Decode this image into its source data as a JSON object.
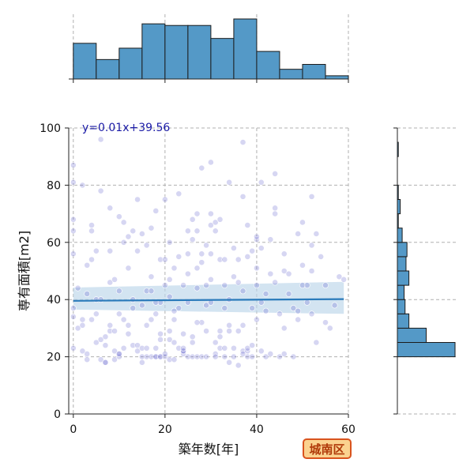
{
  "chart_data": {
    "type": "scatter",
    "xlabel": "築年数[年]",
    "ylabel": "専有面積[m2]",
    "xlim": [
      -1,
      60
    ],
    "ylim": [
      0,
      100
    ],
    "x_ticks": [
      0,
      20,
      40,
      60
    ],
    "y_ticks": [
      0,
      20,
      40,
      60,
      80,
      100
    ],
    "grid": true,
    "annotation": "y=0.01x+39.56",
    "badge": "城南区",
    "regression": {
      "slope": 0.01,
      "intercept": 39.56,
      "ci_left": [
        36.5,
        44.2
      ],
      "ci_right": [
        35.0,
        46.2
      ]
    },
    "colors": {
      "point": "#6a6acf",
      "bar": "#5499c7",
      "line": "#2b7bbb",
      "band": "#bcd6ea",
      "badge_bg": "#fbd28f",
      "badge_border": "#d9531e"
    },
    "top_histogram": {
      "bin_edges": [
        0,
        5,
        10,
        15,
        20,
        25,
        30,
        35,
        40,
        45,
        50,
        55,
        60
      ],
      "counts": [
        22,
        12,
        19,
        34,
        33,
        33,
        25,
        37,
        17,
        6,
        9,
        2
      ]
    },
    "right_histogram": {
      "bin_edges": [
        0,
        5,
        10,
        15,
        20,
        25,
        30,
        35,
        40,
        45,
        50,
        55,
        60,
        65,
        70,
        75,
        80,
        85,
        90,
        95,
        100
      ],
      "counts": [
        0,
        0,
        0,
        0,
        60,
        30,
        12,
        8,
        7,
        12,
        9,
        10,
        5,
        1,
        3,
        1,
        0,
        0,
        1,
        0
      ]
    },
    "points": [
      [
        0,
        23
      ],
      [
        0,
        37
      ],
      [
        0,
        56
      ],
      [
        0,
        64
      ],
      [
        0,
        68
      ],
      [
        0,
        81
      ],
      [
        0,
        87
      ],
      [
        0,
        34
      ],
      [
        1,
        30
      ],
      [
        1,
        44
      ],
      [
        2,
        31
      ],
      [
        2,
        33
      ],
      [
        2,
        22
      ],
      [
        2,
        80
      ],
      [
        3,
        42
      ],
      [
        3,
        19
      ],
      [
        3,
        21
      ],
      [
        4,
        33
      ],
      [
        4,
        54
      ],
      [
        4,
        64
      ],
      [
        4,
        66
      ],
      [
        5,
        25
      ],
      [
        5,
        35
      ],
      [
        5,
        40
      ],
      [
        5,
        57
      ],
      [
        6,
        96
      ],
      [
        6,
        78
      ],
      [
        6,
        26
      ],
      [
        6,
        19
      ],
      [
        7,
        24
      ],
      [
        7,
        27
      ],
      [
        7,
        18
      ],
      [
        7,
        18
      ],
      [
        8,
        57
      ],
      [
        8,
        72
      ],
      [
        8,
        31
      ],
      [
        8,
        29
      ],
      [
        8,
        46
      ],
      [
        9,
        47
      ],
      [
        9,
        29
      ],
      [
        9,
        22
      ],
      [
        9,
        19
      ],
      [
        10,
        69
      ],
      [
        10,
        20
      ],
      [
        10,
        21
      ],
      [
        10,
        21
      ],
      [
        10,
        43
      ],
      [
        11,
        33
      ],
      [
        11,
        23
      ],
      [
        11,
        67
      ],
      [
        11,
        60
      ],
      [
        12,
        31
      ],
      [
        12,
        28
      ],
      [
        12,
        51
      ],
      [
        12,
        62
      ],
      [
        13,
        37
      ],
      [
        13,
        64
      ],
      [
        13,
        24
      ],
      [
        14,
        22
      ],
      [
        14,
        24
      ],
      [
        14,
        75
      ],
      [
        14,
        57
      ],
      [
        15,
        20
      ],
      [
        15,
        38
      ],
      [
        15,
        63
      ],
      [
        15,
        18
      ],
      [
        15,
        23
      ],
      [
        16,
        20
      ],
      [
        16,
        59
      ],
      [
        16,
        43
      ],
      [
        16,
        31
      ],
      [
        16,
        23
      ],
      [
        17,
        20
      ],
      [
        17,
        43
      ],
      [
        17,
        48
      ],
      [
        17,
        65
      ],
      [
        17,
        33
      ],
      [
        18,
        23
      ],
      [
        18,
        20
      ],
      [
        18,
        35
      ],
      [
        18,
        71
      ],
      [
        18,
        20
      ],
      [
        19,
        20
      ],
      [
        19,
        39
      ],
      [
        19,
        20
      ],
      [
        19,
        28
      ],
      [
        19,
        54
      ],
      [
        19,
        26
      ],
      [
        20,
        75
      ],
      [
        20,
        45
      ],
      [
        20,
        54
      ],
      [
        20,
        20
      ],
      [
        20,
        21
      ],
      [
        21,
        60
      ],
      [
        21,
        29
      ],
      [
        21,
        19
      ],
      [
        21,
        26
      ],
      [
        21,
        47
      ],
      [
        22,
        25
      ],
      [
        22,
        33
      ],
      [
        22,
        51
      ],
      [
        22,
        19
      ],
      [
        22,
        36
      ],
      [
        23,
        77
      ],
      [
        23,
        55
      ],
      [
        23,
        23
      ],
      [
        23,
        37
      ],
      [
        24,
        21
      ],
      [
        24,
        22
      ],
      [
        24,
        22
      ],
      [
        24,
        23
      ],
      [
        24,
        28
      ],
      [
        25,
        56
      ],
      [
        25,
        49
      ],
      [
        25,
        39
      ],
      [
        25,
        20
      ],
      [
        25,
        64
      ],
      [
        26,
        61
      ],
      [
        26,
        27
      ],
      [
        26,
        20
      ],
      [
        26,
        68
      ],
      [
        26,
        25
      ],
      [
        27,
        51
      ],
      [
        27,
        70
      ],
      [
        27,
        44
      ],
      [
        27,
        64
      ],
      [
        27,
        20
      ],
      [
        28,
        86
      ],
      [
        28,
        32
      ],
      [
        28,
        20
      ],
      [
        28,
        53
      ],
      [
        28,
        56
      ],
      [
        29,
        38
      ],
      [
        29,
        29
      ],
      [
        29,
        45
      ],
      [
        29,
        20
      ],
      [
        29,
        59
      ],
      [
        30,
        56
      ],
      [
        30,
        47
      ],
      [
        30,
        66
      ],
      [
        30,
        70
      ],
      [
        30,
        88
      ],
      [
        31,
        25
      ],
      [
        31,
        21
      ],
      [
        31,
        67
      ],
      [
        31,
        20
      ],
      [
        31,
        64
      ],
      [
        32,
        54
      ],
      [
        32,
        23
      ],
      [
        32,
        29
      ],
      [
        32,
        68
      ],
      [
        32,
        27
      ],
      [
        33,
        20
      ],
      [
        33,
        45
      ],
      [
        33,
        54
      ],
      [
        33,
        23
      ],
      [
        34,
        81
      ],
      [
        34,
        31
      ],
      [
        34,
        29
      ],
      [
        34,
        18
      ],
      [
        34,
        40
      ],
      [
        35,
        48
      ],
      [
        35,
        58
      ],
      [
        35,
        23
      ],
      [
        35,
        20
      ],
      [
        36,
        17
      ],
      [
        36,
        54
      ],
      [
        36,
        46
      ],
      [
        36,
        29
      ],
      [
        37,
        22
      ],
      [
        37,
        95
      ],
      [
        37,
        43
      ],
      [
        37,
        21
      ],
      [
        37,
        76
      ],
      [
        38,
        22
      ],
      [
        38,
        20
      ],
      [
        38,
        66
      ],
      [
        38,
        55
      ],
      [
        38,
        23
      ],
      [
        39,
        24
      ],
      [
        39,
        57
      ],
      [
        39,
        37
      ],
      [
        39,
        20
      ],
      [
        40,
        61
      ],
      [
        40,
        51
      ],
      [
        40,
        62
      ],
      [
        40,
        33
      ],
      [
        41,
        22
      ],
      [
        41,
        58
      ],
      [
        41,
        81
      ],
      [
        41,
        39
      ],
      [
        42,
        20
      ],
      [
        42,
        42
      ],
      [
        42,
        36
      ],
      [
        43,
        61
      ],
      [
        43,
        49
      ],
      [
        43,
        21
      ],
      [
        44,
        84
      ],
      [
        44,
        72
      ],
      [
        44,
        46
      ],
      [
        44,
        70
      ],
      [
        45,
        35
      ],
      [
        45,
        20
      ],
      [
        46,
        30
      ],
      [
        46,
        50
      ],
      [
        46,
        21
      ],
      [
        47,
        49
      ],
      [
        47,
        42
      ],
      [
        48,
        37
      ],
      [
        48,
        20
      ],
      [
        49,
        63
      ],
      [
        49,
        33
      ],
      [
        49,
        36
      ],
      [
        50,
        52
      ],
      [
        50,
        67
      ],
      [
        50,
        45
      ],
      [
        51,
        45
      ],
      [
        51,
        39
      ],
      [
        52,
        76
      ],
      [
        52,
        59
      ],
      [
        52,
        50
      ],
      [
        53,
        63
      ],
      [
        53,
        25
      ],
      [
        54,
        55
      ],
      [
        55,
        45
      ],
      [
        55,
        32
      ],
      [
        56,
        30
      ],
      [
        57,
        38
      ],
      [
        58,
        48
      ],
      [
        59,
        47
      ],
      [
        52,
        35
      ],
      [
        46,
        56
      ],
      [
        40,
        45
      ],
      [
        37,
        31
      ],
      [
        33,
        37
      ],
      [
        30,
        39
      ],
      [
        27,
        32
      ],
      [
        24,
        45
      ],
      [
        21,
        41
      ],
      [
        18,
        39
      ],
      [
        13,
        40
      ],
      [
        10,
        35
      ],
      [
        6,
        40
      ],
      [
        3,
        52
      ]
    ]
  }
}
